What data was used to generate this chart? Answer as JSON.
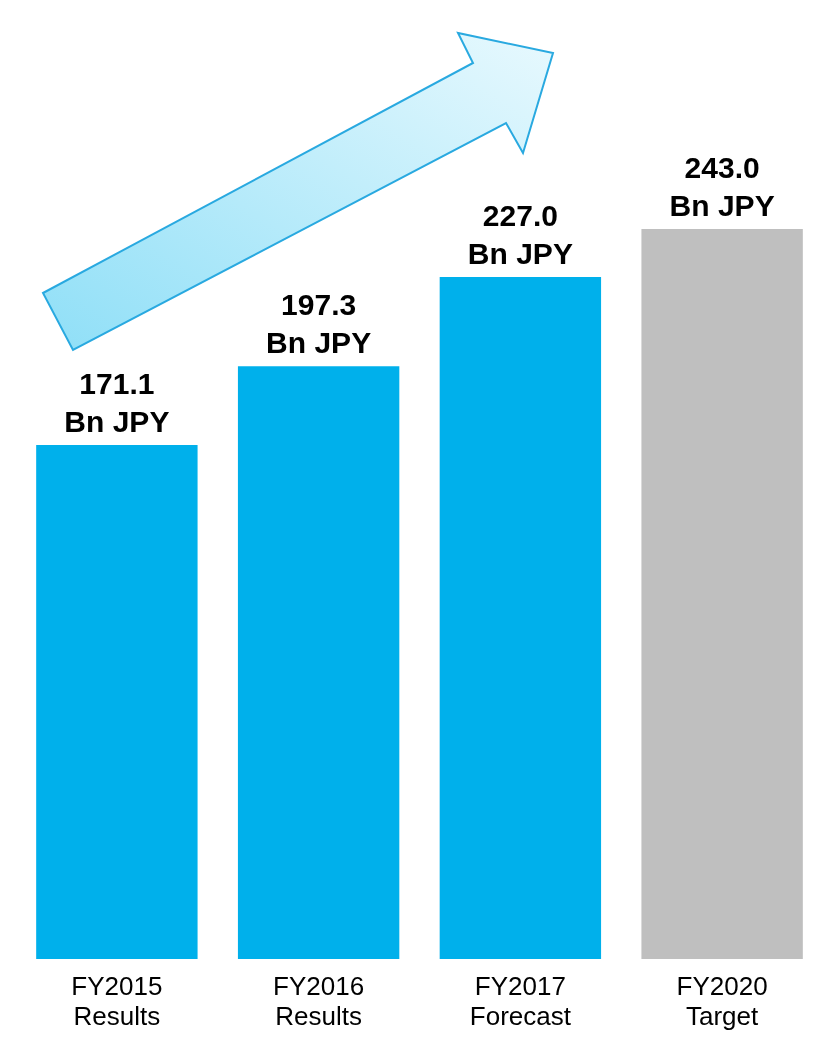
{
  "chart_data": {
    "type": "bar",
    "categories": [
      "FY2015\nResults",
      "FY2016\nResults",
      "FY2017\nForecast",
      "FY2020\nTarget"
    ],
    "values": [
      171.1,
      197.3,
      227.0,
      243.0
    ],
    "colors": [
      "#00b0eb",
      "#00b0eb",
      "#00b0eb",
      "#bfbfbf"
    ],
    "value_labels": [
      "171.1\nBn JPY",
      "197.3\nBn JPY",
      "227.0\nBn JPY",
      "243.0\nBn JPY"
    ]
  }
}
